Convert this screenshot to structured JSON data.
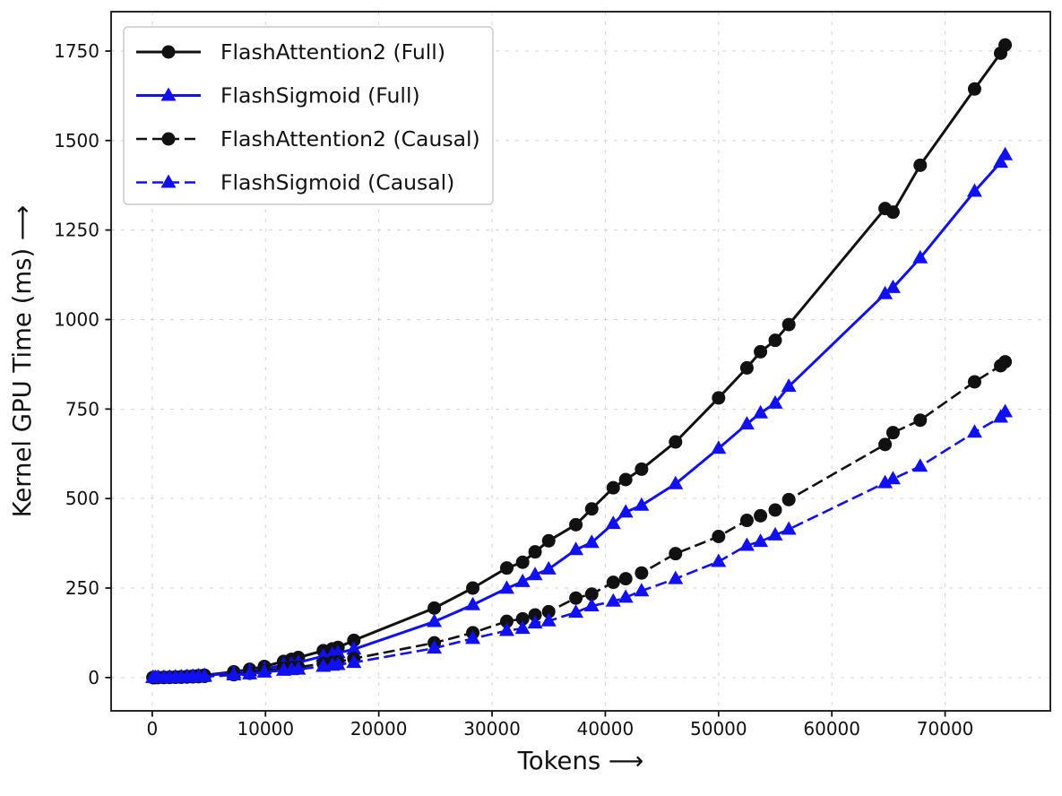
{
  "figure": {
    "background": "#ffffff"
  },
  "chart_data": {
    "type": "line",
    "title": "",
    "xlabel": "Tokens  ⟶",
    "ylabel": "Kernel GPU Time (ms)  ⟶",
    "xlim": [
      -3630,
      79290
    ],
    "ylim": [
      -93,
      1860
    ],
    "x_ticks": [
      0,
      10000,
      20000,
      30000,
      40000,
      50000,
      60000,
      70000
    ],
    "y_ticks": [
      0,
      250,
      500,
      750,
      1000,
      1250,
      1500,
      1750
    ],
    "grid": true,
    "grid_style": "dashed",
    "legend_position": "upper left",
    "x": [
      64,
      256,
      512,
      1024,
      1536,
      2048,
      2560,
      3072,
      3584,
      4096,
      4608,
      7200,
      8600,
      9900,
      11600,
      12300,
      12900,
      15100,
      15900,
      16400,
      17800,
      24900,
      28300,
      31300,
      32700,
      33800,
      35000,
      37400,
      38800,
      40700,
      41800,
      43200,
      46200,
      50000,
      52500,
      53700,
      55000,
      56200,
      64700,
      65400,
      67800,
      72600,
      74900,
      75300
    ],
    "series": [
      {
        "name": "FlashAttention2 (Full)",
        "color": "#111111",
        "linestyle": "solid",
        "marker": "circle",
        "values": [
          0.1,
          0.1,
          0.2,
          0.5,
          1,
          1.5,
          2,
          3,
          4,
          5.2,
          6.6,
          16,
          23,
          31,
          45,
          51,
          56,
          75,
          80,
          84,
          104,
          194,
          250,
          306,
          322,
          351,
          382,
          427,
          471,
          530,
          553,
          582,
          658,
          781,
          865,
          910,
          942,
          986,
          1310,
          1300,
          1431,
          1644,
          1744,
          1767
        ]
      },
      {
        "name": "FlashSigmoid (Full)",
        "color": "#1010f0",
        "linestyle": "solid",
        "marker": "triangle",
        "values": [
          0,
          0.1,
          0.1,
          0.3,
          0.6,
          1.1,
          1.7,
          2.4,
          3.3,
          4.3,
          5.5,
          13,
          19,
          24,
          35,
          37,
          42,
          60,
          65,
          69,
          79,
          156,
          203,
          249,
          268,
          287,
          303,
          357,
          377,
          430,
          462,
          481,
          541,
          640,
          708,
          739,
          766,
          813,
          1072,
          1089,
          1172,
          1358,
          1439,
          1460
        ]
      },
      {
        "name": "FlashAttention2 (Causal)",
        "color": "#111111",
        "linestyle": "dashed",
        "marker": "circle",
        "values": [
          0,
          0.1,
          0.1,
          0.2,
          0.4,
          0.7,
          1,
          1.5,
          2,
          2.6,
          3.3,
          8,
          12,
          19,
          26,
          28,
          29,
          39,
          42,
          44,
          53,
          97,
          125,
          157,
          164,
          175,
          184,
          222,
          233,
          266,
          276,
          292,
          346,
          394,
          439,
          452,
          468,
          497,
          651,
          684,
          719,
          826,
          871,
          882
        ]
      },
      {
        "name": "FlashSigmoid (Causal)",
        "color": "#1010f0",
        "linestyle": "dashed",
        "marker": "triangle",
        "values": [
          0,
          0,
          0.1,
          0.1,
          0.3,
          0.5,
          0.9,
          1.2,
          1.7,
          2.2,
          2.8,
          7,
          10,
          15,
          20,
          22,
          23,
          31,
          34,
          36,
          42,
          82,
          109,
          131,
          137,
          152,
          158,
          182,
          200,
          213,
          224,
          242,
          276,
          324,
          369,
          380,
          398,
          414,
          544,
          555,
          590,
          685,
          727,
          742
        ]
      }
    ]
  }
}
